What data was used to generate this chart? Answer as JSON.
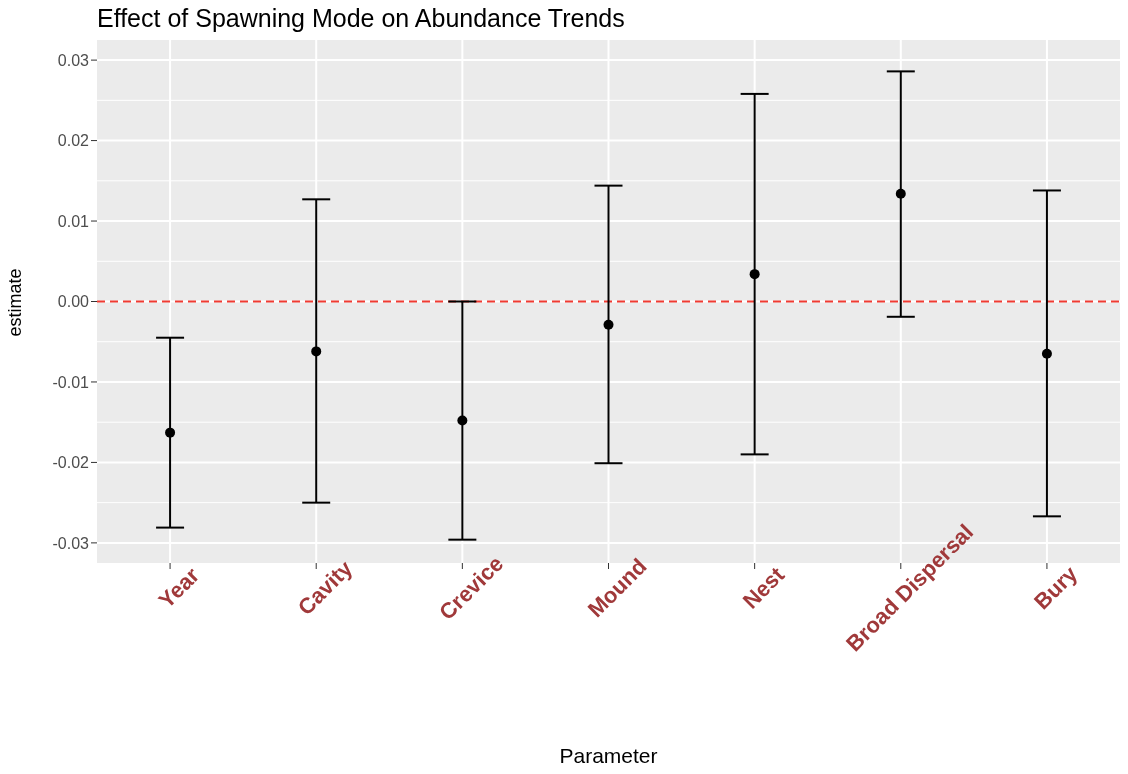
{
  "chart_data": {
    "type": "scatter",
    "title": "Effect of Spawning Mode on Abundance Trends",
    "xlabel": "Parameter",
    "ylabel": "estimate",
    "categories": [
      "Year",
      "Cavity",
      "Crevice",
      "Mound",
      "Nest",
      "Broad Dispersal",
      "Bury"
    ],
    "values": [
      -0.0163,
      -0.0062,
      -0.0148,
      -0.0029,
      0.0034,
      0.0134,
      -0.0065
    ],
    "errors": [
      [
        -0.0281,
        -0.0045
      ],
      [
        -0.025,
        0.0127
      ],
      [
        -0.0296,
        0.0
      ],
      [
        -0.0201,
        0.0144
      ],
      [
        -0.019,
        0.0258
      ],
      [
        -0.0019,
        0.0286
      ],
      [
        -0.0267,
        0.0138
      ]
    ],
    "color": "#000000",
    "marker": "circle",
    "ylim": [
      -0.0325,
      0.0325
    ],
    "yticks": [
      {
        "value": -0.03,
        "label": "-0.03"
      },
      {
        "value": -0.02,
        "label": "-0.02"
      },
      {
        "value": -0.01,
        "label": "-0.01"
      },
      {
        "value": 0,
        "label": "0.00"
      },
      {
        "value": 0.01,
        "label": "0.01"
      },
      {
        "value": 0.02,
        "label": "0.02"
      },
      {
        "value": 0.03,
        "label": "0.03"
      }
    ],
    "ref_lines": [
      {
        "axis": "y",
        "value": 0,
        "color": "#f03b32",
        "line_style": "dashed"
      }
    ],
    "grid": true,
    "legend": false
  }
}
